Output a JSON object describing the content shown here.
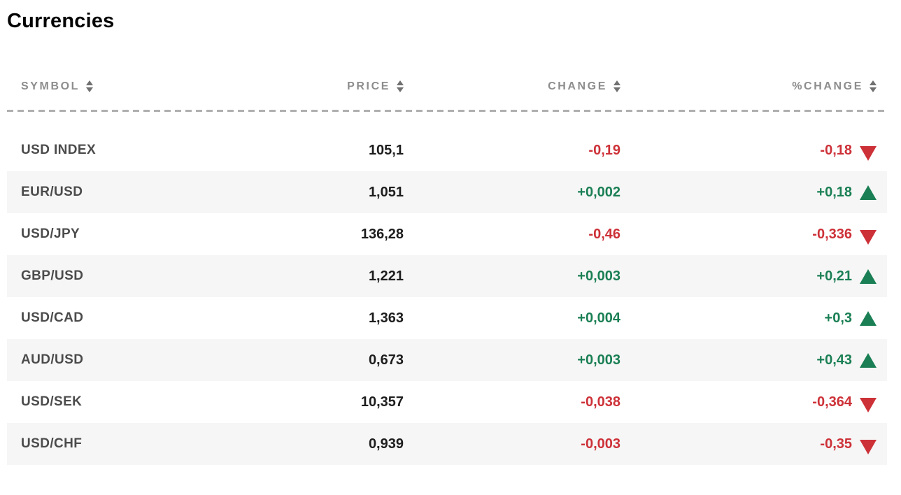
{
  "page": {
    "title": "Currencies"
  },
  "colors": {
    "up": "#1a7f54",
    "down": "#cd3138",
    "alt_row": "#f6f6f6",
    "header_text": "#8d8d8d",
    "symbol_text": "#4b4b4b",
    "value_text": "#1d1d1d"
  },
  "table": {
    "columns": [
      {
        "key": "symbol",
        "label": "SYMBOL",
        "sortable": true
      },
      {
        "key": "price",
        "label": "PRICE",
        "sortable": true
      },
      {
        "key": "change",
        "label": "CHANGE",
        "sortable": true
      },
      {
        "key": "pct_change",
        "label": "%CHANGE",
        "sortable": true
      }
    ],
    "rows": [
      {
        "symbol": "USD INDEX",
        "price": "105,1",
        "change": "-0,19",
        "pct_change": "-0,18",
        "direction": "down"
      },
      {
        "symbol": "EUR/USD",
        "price": "1,051",
        "change": "+0,002",
        "pct_change": "+0,18",
        "direction": "up"
      },
      {
        "symbol": "USD/JPY",
        "price": "136,28",
        "change": "-0,46",
        "pct_change": "-0,336",
        "direction": "down"
      },
      {
        "symbol": "GBP/USD",
        "price": "1,221",
        "change": "+0,003",
        "pct_change": "+0,21",
        "direction": "up"
      },
      {
        "symbol": "USD/CAD",
        "price": "1,363",
        "change": "+0,004",
        "pct_change": "+0,3",
        "direction": "up"
      },
      {
        "symbol": "AUD/USD",
        "price": "0,673",
        "change": "+0,003",
        "pct_change": "+0,43",
        "direction": "up"
      },
      {
        "symbol": "USD/SEK",
        "price": "10,357",
        "change": "-0,038",
        "pct_change": "-0,364",
        "direction": "down"
      },
      {
        "symbol": "USD/CHF",
        "price": "0,939",
        "change": "-0,003",
        "pct_change": "-0,35",
        "direction": "down"
      }
    ]
  }
}
